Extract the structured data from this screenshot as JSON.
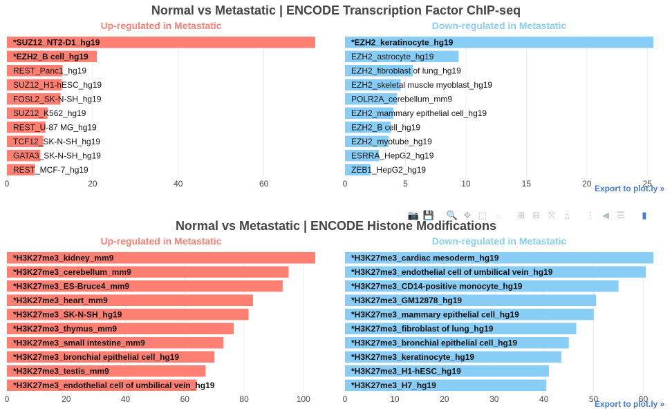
{
  "charts": {
    "tf": {
      "title": "Normal vs Metastatic | ENCODE Transcription Factor ChIP-seq",
      "export_label": "Export to plot.ly »"
    },
    "histone": {
      "title": "Normal vs Metastatic | ENCODE Histone Modifications",
      "export_label": "Export to plot.ly »"
    }
  },
  "modebar": {
    "icons": [
      "camera-icon",
      "save-icon",
      "zoom-icon",
      "pan-icon",
      "box-select-icon",
      "lasso-icon",
      "zoom-in-icon",
      "zoom-out-icon",
      "autoscale-icon",
      "reset-axes-icon",
      "spike-lines-icon",
      "hover-closest-icon",
      "hover-compare-icon",
      "plotly-logo-icon"
    ]
  },
  "colors": {
    "up": "#ff7f72",
    "down": "#87cdf5",
    "title": "#444444",
    "export": "#447adb",
    "grid": "#eeeeee"
  },
  "chart_data": [
    {
      "type": "bar",
      "orientation": "horizontal",
      "group": "tf",
      "title": "Up-regulated in Metastatic",
      "xlim": [
        0,
        72
      ],
      "xticks": [
        0,
        20,
        40,
        60
      ],
      "categories": [
        "*SUZ12_NT2-D1_hg19",
        "*EZH2_B cell_hg19",
        "REST_Panc1_hg19",
        "SUZ12_H1-hESC_hg19",
        "FOSL2_SK-N-SH_hg19",
        "SUZ12_K562_hg19",
        "REST_U-87 MG_hg19",
        "TCF12_SK-N-SH_hg19",
        "GATA3_SK-N-SH_hg19",
        "REST_MCF-7_hg19"
      ],
      "values": [
        72.5,
        21,
        13,
        12.8,
        12.5,
        9.5,
        9,
        8.5,
        7.8,
        6.5
      ],
      "bold": [
        true,
        true,
        false,
        false,
        false,
        false,
        false,
        false,
        false,
        false
      ],
      "color": "#ff7f72"
    },
    {
      "type": "bar",
      "orientation": "horizontal",
      "group": "tf",
      "title": "Down-regulated in Metastatic",
      "xlim": [
        0,
        25.5
      ],
      "xticks": [
        0,
        5,
        10,
        15,
        20,
        25
      ],
      "categories": [
        "*EZH2_keratinocyte_hg19",
        "EZH2_astrocyte_hg19",
        "EZH2_fibroblast of lung_hg19",
        "EZH2_skeletal muscle myoblast_hg19",
        "POLR2A_cerebellum_mm9",
        "EZH2_mammary epithelial cell_hg19",
        "EZH2_B cell_hg19",
        "EZH2_myotube_hg19",
        "ESRRA_HepG2_hg19",
        "ZEB1_HepG2_hg19"
      ],
      "values": [
        25.5,
        9.4,
        5.6,
        4.6,
        4.3,
        4.0,
        3.8,
        3.6,
        2.8,
        2.1
      ],
      "bold": [
        true,
        false,
        false,
        false,
        false,
        false,
        false,
        false,
        false,
        false
      ],
      "color": "#87cdf5"
    },
    {
      "type": "bar",
      "orientation": "horizontal",
      "group": "histone",
      "title": "Up-regulated in Metastatic",
      "xlim": [
        0,
        104
      ],
      "xticks": [
        0,
        20,
        40,
        60,
        80,
        100
      ],
      "categories": [
        "*H3K27me3_kidney_mm9",
        "*H3K27me3_cerebellum_mm9",
        "*H3K27me3_ES-Bruce4_mm9",
        "*H3K27me3_heart_mm9",
        "*H3K27me3_SK-N-SH_hg19",
        "*H3K27me3_thymus_mm9",
        "*H3K27me3_small intestine_mm9",
        "*H3K27me3_bronchial epithelial cell_hg19",
        "*H3K27me3_testis_mm9",
        "*H3K27me3_endothelial cell of umbilical vein_hg19"
      ],
      "values": [
        104,
        95,
        93,
        83,
        81.5,
        76.5,
        73,
        70,
        67,
        64
      ],
      "bold": [
        true,
        true,
        true,
        true,
        true,
        true,
        true,
        true,
        true,
        true
      ],
      "color": "#ff7f72"
    },
    {
      "type": "bar",
      "orientation": "horizontal",
      "group": "histone",
      "title": "Down-regulated in Metastatic",
      "xlim": [
        0,
        62
      ],
      "xticks": [
        0,
        10,
        20,
        30,
        40,
        50,
        60
      ],
      "categories": [
        "*H3K27me3_cardiac mesoderm_hg19",
        "*H3K27me3_endothelial cell of umbilical vein_hg19",
        "*H3K27me3_CD14-positive monocyte_hg19",
        "*H3K27me3_GM12878_hg19",
        "*H3K27me3_mammary epithelial cell_hg19",
        "*H3K27me3_fibroblast of lung_hg19",
        "*H3K27me3_bronchial epithelial cell_hg19",
        "*H3K27me3_keratinocyte_hg19",
        "*H3K27me3_H1-hESC_hg19",
        "*H3K27me3_H7_hg19"
      ],
      "values": [
        62,
        60.5,
        55,
        50.5,
        50,
        46.5,
        45,
        43.5,
        41,
        40.5
      ],
      "bold": [
        true,
        true,
        true,
        true,
        true,
        true,
        true,
        true,
        true,
        true
      ],
      "color": "#87cdf5"
    }
  ]
}
